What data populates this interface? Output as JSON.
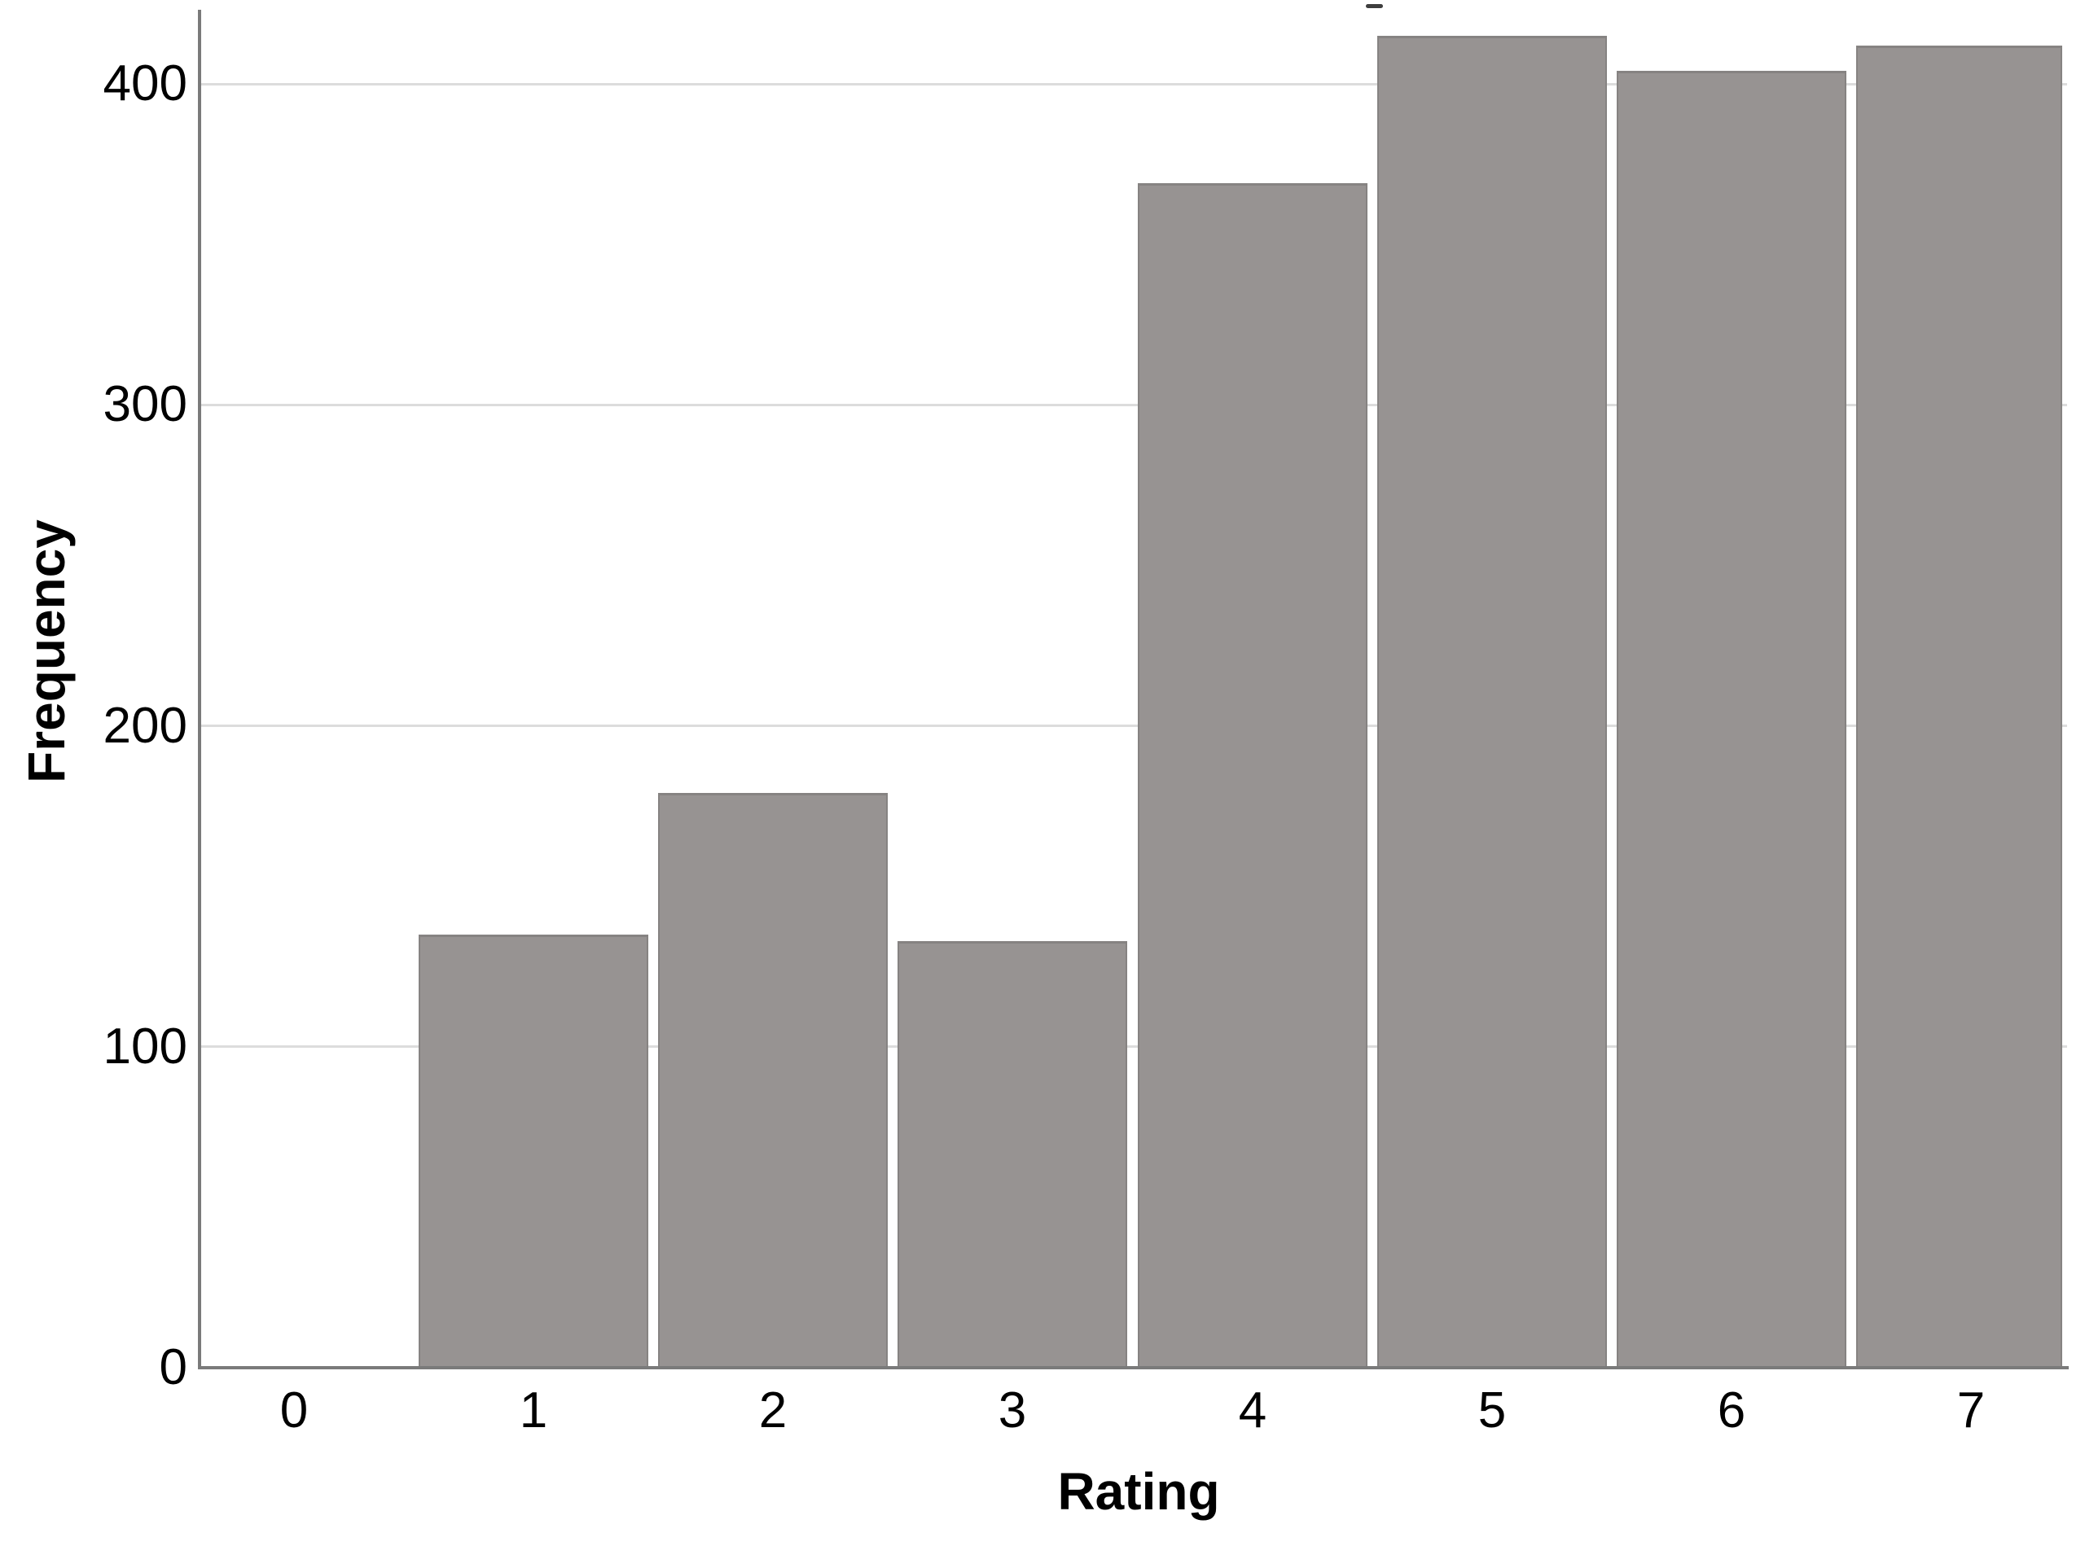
{
  "chart_data": {
    "type": "bar",
    "title": "",
    "xlabel": "Rating",
    "ylabel": "Frequency",
    "categories": [
      "0",
      "1",
      "2",
      "3",
      "4",
      "5",
      "6",
      "7"
    ],
    "values": [
      0,
      135,
      179,
      133,
      369,
      415,
      404,
      412
    ],
    "yticks": [
      0,
      100,
      200,
      300,
      400
    ],
    "ylim": [
      0,
      426
    ],
    "grid": "horizontal-only",
    "legend": "none",
    "bar_fill_color": "#979392",
    "bar_border_color": "#868382",
    "gridline_color": "#dcdcdc",
    "axis_line_color": "#7a7a7a",
    "text_color": "#000000",
    "background_color": "#ffffff",
    "stray_mark_color": "#3e3e3e"
  }
}
